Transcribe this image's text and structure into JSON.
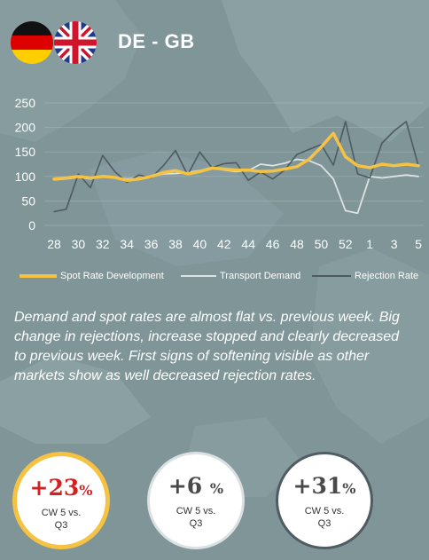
{
  "header": {
    "title": "DE - GB",
    "flags": [
      "germany-flag",
      "united-kingdom-flag"
    ]
  },
  "chart_data": {
    "type": "line",
    "x": [
      "28",
      "29",
      "30",
      "31",
      "32",
      "33",
      "34",
      "35",
      "36",
      "37",
      "38",
      "39",
      "40",
      "41",
      "42",
      "43",
      "44",
      "45",
      "46",
      "47",
      "48",
      "49",
      "50",
      "51",
      "52",
      "53",
      "1",
      "2",
      "3",
      "4",
      "5"
    ],
    "xticks": [
      "28",
      "30",
      "32",
      "34",
      "36",
      "38",
      "40",
      "42",
      "44",
      "46",
      "48",
      "50",
      "52",
      "1",
      "3",
      "5"
    ],
    "yticks": [
      0,
      50,
      100,
      150,
      200,
      250
    ],
    "ylim": [
      0,
      250
    ],
    "grid": true,
    "legend_position": "bottom",
    "series": [
      {
        "name": "Spot Rate Development",
        "color": "#f5c242",
        "values": [
          95,
          97,
          100,
          97,
          100,
          98,
          92,
          95,
          100,
          108,
          112,
          105,
          110,
          117,
          115,
          113,
          113,
          110,
          111,
          115,
          120,
          135,
          160,
          188,
          140,
          122,
          118,
          125,
          122,
          125,
          122
        ]
      },
      {
        "name": "Transport Demand",
        "color": "#dde2e4",
        "values": [
          93,
          95,
          98,
          95,
          100,
          98,
          95,
          97,
          100,
          105,
          106,
          108,
          112,
          118,
          113,
          110,
          112,
          125,
          122,
          127,
          135,
          132,
          122,
          95,
          30,
          25,
          100,
          97,
          100,
          103,
          100
        ]
      },
      {
        "name": "Rejection Rate",
        "color": "#4e5b61",
        "values": [
          28,
          33,
          105,
          77,
          143,
          110,
          88,
          103,
          97,
          122,
          153,
          103,
          150,
          118,
          126,
          128,
          92,
          109,
          95,
          113,
          145,
          155,
          165,
          123,
          212,
          105,
          97,
          168,
          193,
          212,
          122
        ]
      }
    ]
  },
  "comment": "Demand and spot rates are almost flat vs. previous week. Big change in rejections, increase stopped and clearly decreased to previous week. First signs of softening visible as other markets show as well decreased rejection rates.",
  "kpis": [
    {
      "value": "+23",
      "unit": "%",
      "label_line1": "CW 5 vs.",
      "label_line2": "Q3",
      "value_color": "#d42020"
    },
    {
      "value": "+6",
      "unit": "%",
      "label_line1": "CW 5 vs.",
      "label_line2": "Q3",
      "value_color": "#4a4a4a"
    },
    {
      "value": "+31",
      "unit": "%",
      "label_line1": "CW 5 vs.",
      "label_line2": "Q3",
      "value_color": "#4a4a4a"
    }
  ]
}
